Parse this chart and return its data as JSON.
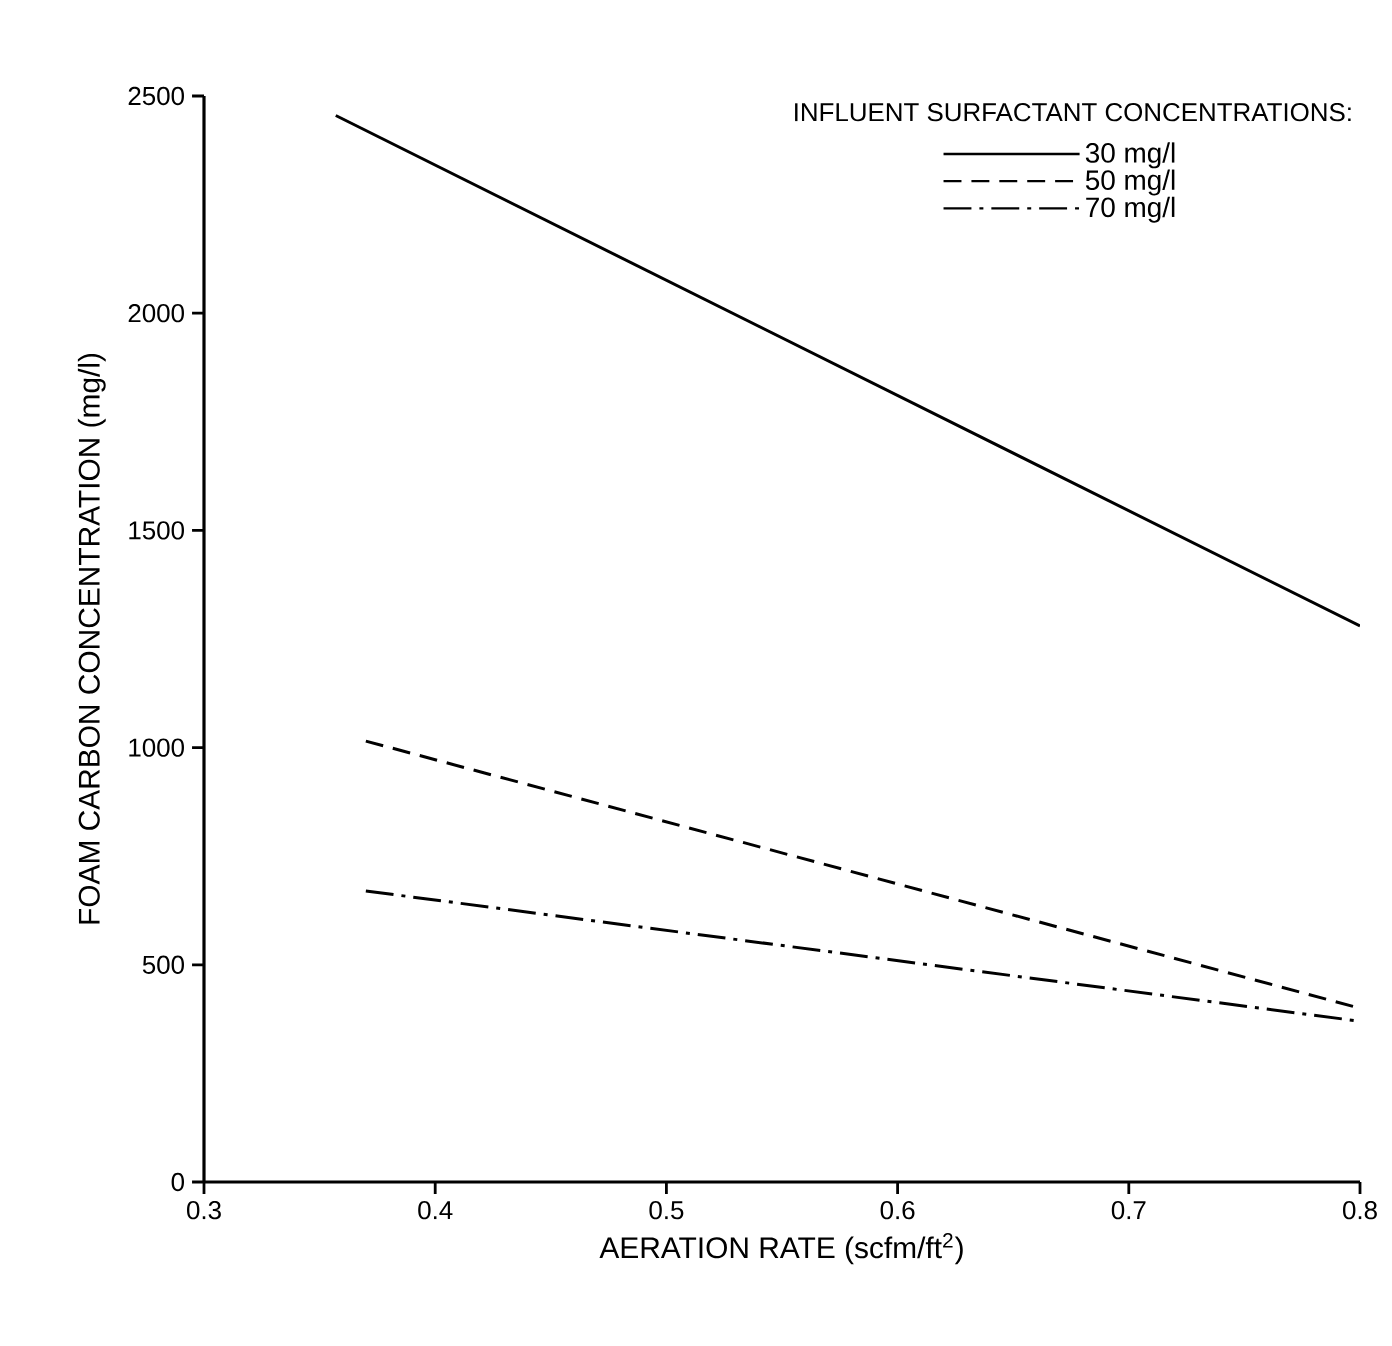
{
  "chart_data": {
    "type": "line",
    "xlabel": "AERATION RATE (scfm/ft$^{2}$)",
    "ylabel": "FOAM CARBON CONCENTRATION (mg/l)",
    "legend_title": "INFLUENT SURFACTANT CONCENTRATIONS:",
    "xlim": [
      0.3,
      0.8
    ],
    "xticks": [
      0.3,
      0.4,
      0.5,
      0.6,
      0.7,
      0.8
    ],
    "ylim": [
      0,
      2500
    ],
    "yticks": [
      0,
      500,
      1000,
      1500,
      2000,
      2500
    ],
    "grid": false,
    "legend": "top right",
    "marker": "none",
    "series": [
      {
        "name": "30 mg/l",
        "color": "#000000",
        "line_style": "solid",
        "x": [
          0.357,
          0.8
        ],
        "values": [
          2455,
          1280
        ]
      },
      {
        "name": "50 mg/l",
        "color": "#000000",
        "line_style": "dashed",
        "x": [
          0.37,
          0.8
        ],
        "values": [
          1015,
          400
        ]
      },
      {
        "name": "70 mg/l",
        "color": "#000000",
        "line_style": "dashdot",
        "x": [
          0.37,
          0.8
        ],
        "values": [
          670,
          370
        ]
      }
    ]
  }
}
